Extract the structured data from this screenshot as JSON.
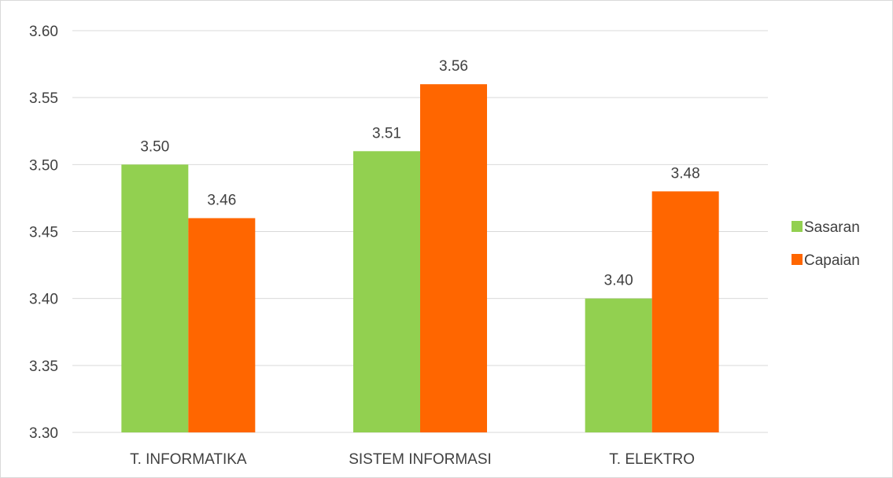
{
  "chart_data": {
    "type": "bar",
    "title": "",
    "xlabel": "",
    "ylabel": "",
    "categories": [
      "T. INFORMATIKA",
      "SISTEM INFORMASI",
      "T. ELEKTRO"
    ],
    "series": [
      {
        "name": "Sasaran",
        "values": [
          3.5,
          3.51,
          3.4
        ],
        "color": "#92d050"
      },
      {
        "name": "Capaian",
        "values": [
          3.46,
          3.56,
          3.48
        ],
        "color": "#ff6600"
      }
    ],
    "ylim": [
      3.3,
      3.6
    ],
    "yticks": [
      "3.30",
      "3.35",
      "3.40",
      "3.45",
      "3.50",
      "3.55",
      "3.60"
    ],
    "data_labels": [
      [
        "3.50",
        "3.51",
        "3.40"
      ],
      [
        "3.46",
        "3.56",
        "3.48"
      ]
    ],
    "grid": true,
    "legend_position": "right"
  }
}
